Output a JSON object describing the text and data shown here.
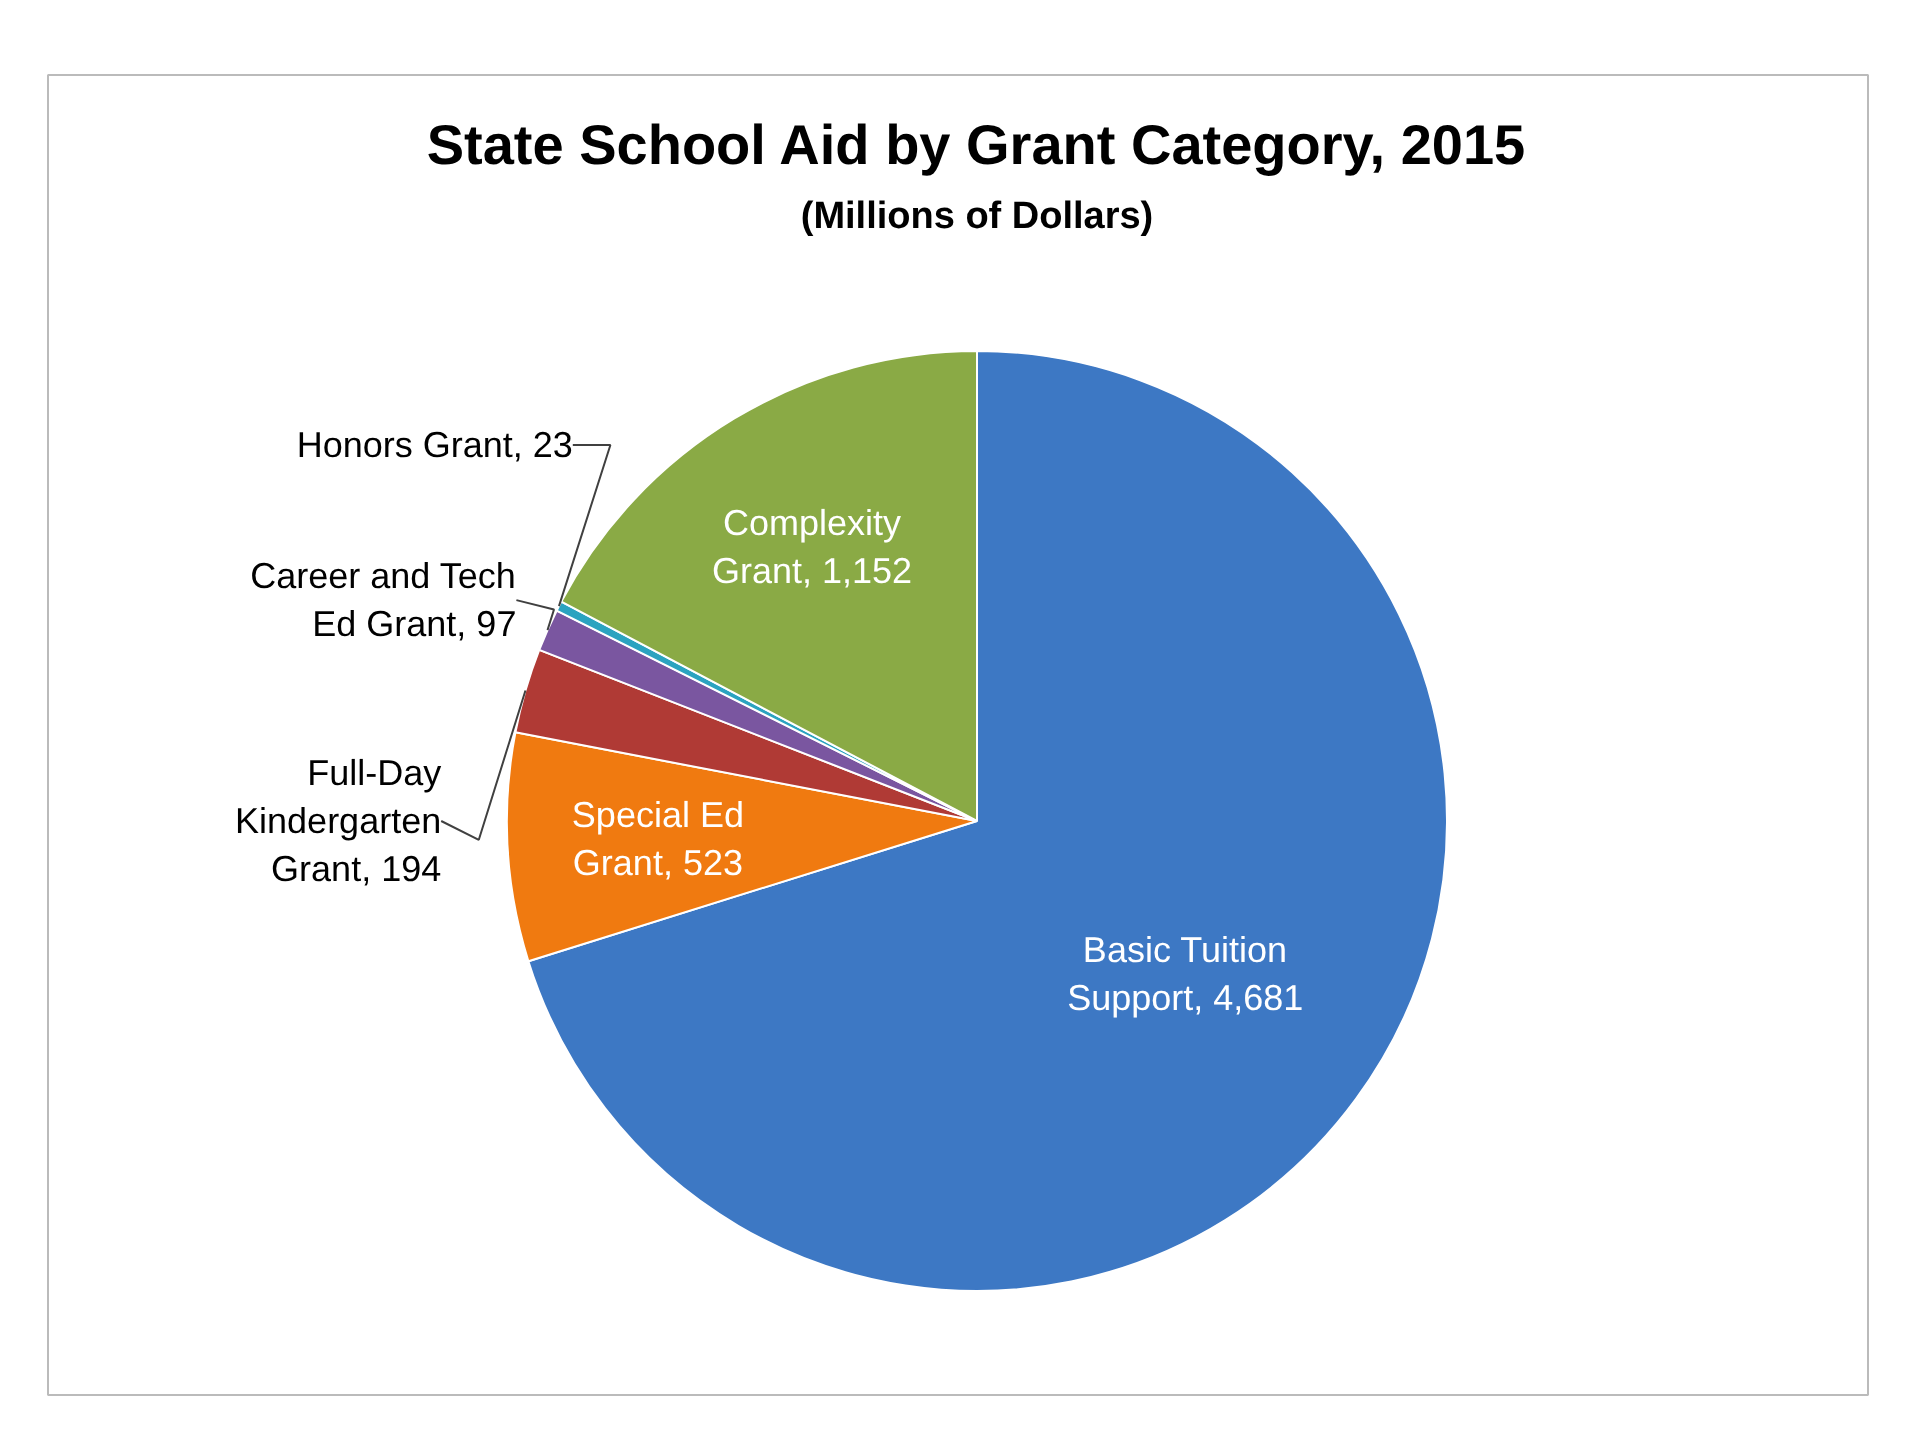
{
  "chart_data": {
    "type": "pie",
    "title": "State School Aid by Grant Category, 2015",
    "subtitle": "(Millions of Dollars)",
    "categories": [
      "Basic Tuition Support",
      "Special Ed Grant",
      "Full-Day Kindergarten Grant",
      "Career and Tech Ed Grant",
      "Honors Grant",
      "Complexity Grant"
    ],
    "values": [
      4681,
      523,
      194,
      97,
      23,
      1152
    ],
    "colors": [
      "#3d78c4",
      "#f07a10",
      "#b03a35",
      "#7a56a0",
      "#2ba3c0",
      "#8aaa45"
    ],
    "value_labels": [
      "4,681",
      "523",
      "194",
      "97",
      "23",
      "1,152"
    ],
    "data_labels": true,
    "legend": false
  }
}
